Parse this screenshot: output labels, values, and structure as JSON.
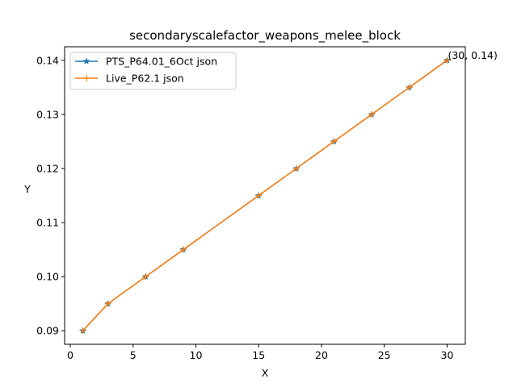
{
  "chart_data": {
    "type": "line",
    "title": "secondaryscalefactor_weapons_melee_block",
    "xlabel": "X",
    "ylabel": "Y",
    "xlim": [
      -0.45,
      31.45
    ],
    "ylim": [
      0.0875,
      0.1425
    ],
    "x_ticks": [
      0,
      5,
      10,
      15,
      20,
      25,
      30
    ],
    "y_ticks": [
      0.09,
      0.1,
      0.11,
      0.12,
      0.13,
      0.14
    ],
    "x_tick_labels": [
      "0",
      "5",
      "10",
      "15",
      "20",
      "25",
      "30"
    ],
    "y_tick_labels": [
      "0.09",
      "0.10",
      "0.11",
      "0.12",
      "0.13",
      "0.14"
    ],
    "grid": false,
    "legend_position": "upper-left",
    "x": [
      1,
      3,
      6,
      9,
      15,
      18,
      21,
      24,
      27,
      30
    ],
    "series": [
      {
        "name": "PTS_P64.01_6Oct json",
        "color": "#1f77b4",
        "marker": "star",
        "values": [
          0.09,
          0.095,
          0.1,
          0.105,
          0.115,
          0.12,
          0.125,
          0.13,
          0.135,
          0.14
        ]
      },
      {
        "name": "Live_P62.1 json",
        "color": "#ff7f0e",
        "marker": "plus",
        "values": [
          0.09,
          0.095,
          0.1,
          0.105,
          0.115,
          0.12,
          0.125,
          0.13,
          0.135,
          0.14
        ]
      }
    ],
    "annotations": [
      {
        "text": "(30, 0.14)",
        "x": 30,
        "y": 0.14
      }
    ]
  }
}
